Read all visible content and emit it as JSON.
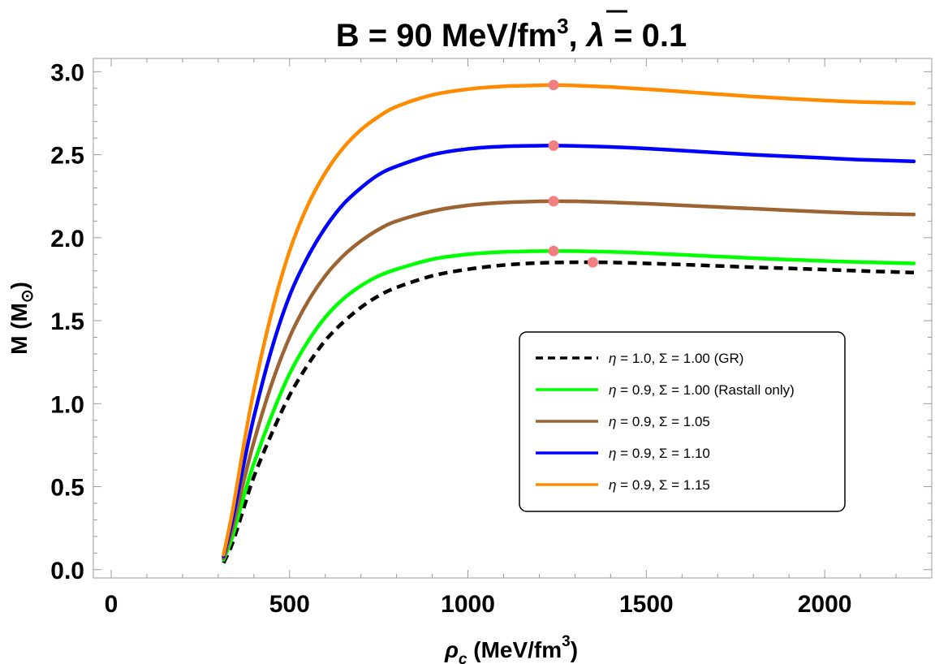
{
  "chart_data": {
    "type": "line",
    "title": {
      "lead": "B = 90 MeV/fm",
      "lead_sup": "3",
      "mid": ", ",
      "lambda_symbol": "λ",
      "tail": " = 0.1"
    },
    "xlabel": {
      "symbol": "ρ",
      "sub": "c",
      "unit": " (MeV/fm",
      "unit_sup": "3",
      "close": ")"
    },
    "ylabel": {
      "text": "M (M",
      "sub": "⊙",
      "close": ")"
    },
    "xlim": [
      -50,
      2300
    ],
    "ylim": [
      -0.05,
      3.08
    ],
    "x_ticks": [
      0,
      500,
      1000,
      1500,
      2000
    ],
    "x_tick_labels": [
      "0",
      "500",
      "1000",
      "1500",
      "2000"
    ],
    "y_ticks": [
      0.0,
      0.5,
      1.0,
      1.5,
      2.0,
      2.5,
      3.0
    ],
    "y_tick_labels": [
      "0.0",
      "0.5",
      "1.0",
      "1.5",
      "2.0",
      "2.5",
      "3.0"
    ],
    "x_minor_step": 100,
    "y_minor_step": 0.1,
    "legend_position": "center-right",
    "marker_color": "#f08080",
    "series": [
      {
        "name": "η = 1.0, Σ = 1.00 (GR)",
        "color": "#000000",
        "dashed": true,
        "x": [
          315,
          340,
          370,
          400,
          450,
          500,
          550,
          600,
          650,
          700,
          750,
          800,
          900,
          1000,
          1100,
          1200,
          1300,
          1350,
          1400,
          1500,
          1600,
          1700,
          1800,
          1900,
          2000,
          2100,
          2250
        ],
        "y": [
          0.04,
          0.16,
          0.36,
          0.56,
          0.82,
          1.05,
          1.23,
          1.38,
          1.49,
          1.58,
          1.65,
          1.7,
          1.77,
          1.81,
          1.835,
          1.848,
          1.852,
          1.852,
          1.851,
          1.845,
          1.838,
          1.83,
          1.822,
          1.815,
          1.808,
          1.8,
          1.79
        ],
        "max_point": [
          1350,
          1.852
        ]
      },
      {
        "name": "η = 0.9, Σ = 1.00 (Rastall only)",
        "color": "#00ff00",
        "dashed": false,
        "x": [
          315,
          340,
          370,
          400,
          450,
          500,
          550,
          600,
          650,
          700,
          750,
          800,
          900,
          1000,
          1100,
          1200,
          1240,
          1300,
          1400,
          1500,
          1600,
          1700,
          1800,
          1900,
          2000,
          2100,
          2250
        ],
        "y": [
          0.06,
          0.2,
          0.43,
          0.64,
          0.93,
          1.18,
          1.37,
          1.52,
          1.63,
          1.71,
          1.77,
          1.81,
          1.87,
          1.9,
          1.914,
          1.919,
          1.92,
          1.919,
          1.915,
          1.907,
          1.897,
          1.887,
          1.877,
          1.868,
          1.86,
          1.853,
          1.845
        ],
        "max_point": [
          1240,
          1.92
        ]
      },
      {
        "name": "η = 0.9, Σ = 1.05",
        "color": "#9c6433",
        "dashed": false,
        "x": [
          315,
          340,
          370,
          400,
          450,
          500,
          550,
          600,
          650,
          700,
          750,
          800,
          900,
          1000,
          1100,
          1200,
          1240,
          1300,
          1400,
          1500,
          1600,
          1700,
          1800,
          1900,
          2000,
          2100,
          2250
        ],
        "y": [
          0.07,
          0.25,
          0.52,
          0.77,
          1.12,
          1.4,
          1.61,
          1.77,
          1.89,
          1.98,
          2.05,
          2.1,
          2.16,
          2.195,
          2.212,
          2.219,
          2.22,
          2.219,
          2.213,
          2.205,
          2.195,
          2.185,
          2.175,
          2.165,
          2.155,
          2.147,
          2.14
        ],
        "max_point": [
          1240,
          2.22
        ]
      },
      {
        "name": "η = 0.9, Σ = 1.10",
        "color": "#0000ff",
        "dashed": false,
        "x": [
          315,
          340,
          370,
          400,
          450,
          500,
          550,
          600,
          650,
          700,
          750,
          800,
          900,
          1000,
          1100,
          1200,
          1240,
          1300,
          1400,
          1500,
          1600,
          1700,
          1800,
          1900,
          2000,
          2100,
          2250
        ],
        "y": [
          0.08,
          0.3,
          0.62,
          0.92,
          1.33,
          1.65,
          1.88,
          2.06,
          2.2,
          2.3,
          2.38,
          2.43,
          2.5,
          2.535,
          2.55,
          2.554,
          2.555,
          2.553,
          2.547,
          2.537,
          2.525,
          2.512,
          2.5,
          2.49,
          2.48,
          2.47,
          2.46
        ],
        "max_point": [
          1240,
          2.555
        ]
      },
      {
        "name": "η = 0.9, Σ = 1.15",
        "color": "#ff8c00",
        "dashed": false,
        "x": [
          315,
          340,
          370,
          400,
          450,
          500,
          550,
          600,
          650,
          700,
          750,
          800,
          900,
          1000,
          1100,
          1200,
          1240,
          1300,
          1400,
          1500,
          1600,
          1700,
          1800,
          1900,
          2000,
          2100,
          2250
        ],
        "y": [
          0.09,
          0.35,
          0.73,
          1.08,
          1.55,
          1.92,
          2.19,
          2.39,
          2.54,
          2.65,
          2.73,
          2.79,
          2.86,
          2.895,
          2.912,
          2.918,
          2.92,
          2.917,
          2.908,
          2.895,
          2.88,
          2.865,
          2.85,
          2.838,
          2.827,
          2.818,
          2.81
        ],
        "max_point": [
          1240,
          2.92
        ]
      }
    ]
  }
}
